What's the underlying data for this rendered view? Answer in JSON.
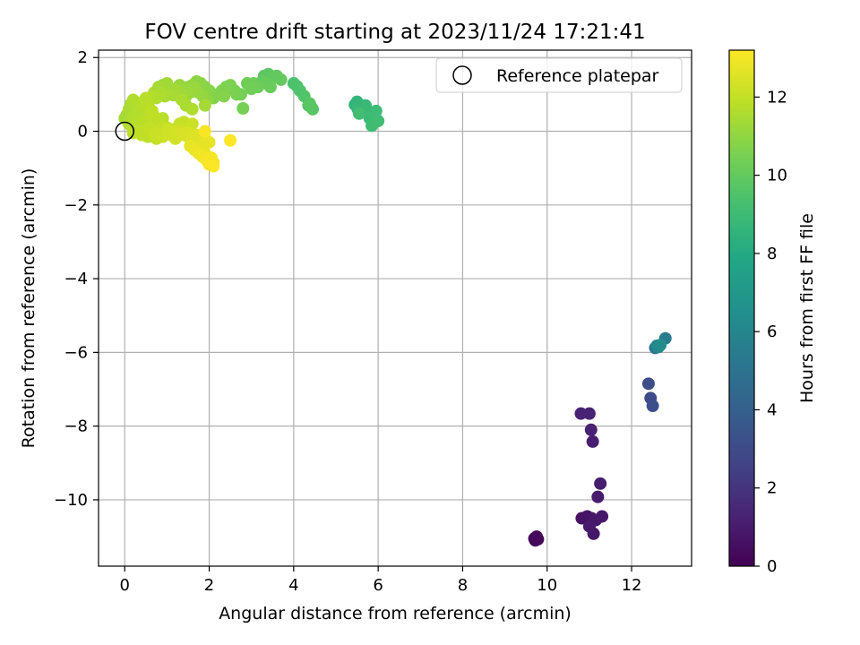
{
  "chart_data": {
    "type": "scatter",
    "title": "FOV centre drift starting at 2023/11/24 17:21:41",
    "xlabel": "Angular distance from reference (arcmin)",
    "ylabel": "Rotation from reference (arcmin)",
    "xlim": [
      -0.62,
      13.42
    ],
    "ylim": [
      -11.8,
      2.2
    ],
    "xticks": [
      0,
      2,
      4,
      6,
      8,
      10,
      12
    ],
    "yticks": [
      2,
      0,
      -2,
      -4,
      -6,
      -8,
      -10
    ],
    "grid": true,
    "legend": {
      "position": "top-right",
      "entries": [
        "Reference platepar"
      ]
    },
    "reference_point": {
      "x": 0,
      "y": 0,
      "label": "Reference platepar"
    },
    "colorbar": {
      "label": "Hours from first FF file",
      "range": [
        0,
        13.2
      ],
      "ticks": [
        0,
        2,
        4,
        6,
        8,
        10,
        12
      ],
      "colormap": "viridis"
    },
    "series": [
      {
        "x": [
          9.7,
          9.72,
          9.75,
          9.78,
          9.74,
          10.82,
          10.9,
          10.95,
          11.05,
          11.1,
          11.15,
          11.3,
          11.0,
          11.2,
          11.26,
          11.08,
          11.04,
          11.0,
          10.8,
          12.45,
          12.5,
          12.56,
          12.4,
          12.6,
          12.64,
          12.68,
          12.8
        ],
        "y": [
          -11.05,
          -11.1,
          -11.0,
          -11.07,
          -11.02,
          -10.5,
          -10.48,
          -10.45,
          -10.5,
          -10.92,
          -10.55,
          -10.45,
          -10.72,
          -9.92,
          -9.56,
          -8.42,
          -8.1,
          -7.66,
          -7.66,
          -7.24,
          -7.45,
          -5.88,
          -6.85,
          -5.82,
          -5.85,
          -5.8,
          -5.62
        ],
        "hours": [
          0.05,
          0.1,
          0.15,
          0.2,
          0.25,
          0.6,
          0.65,
          0.7,
          0.75,
          0.8,
          0.85,
          0.9,
          0.95,
          1.0,
          1.05,
          1.1,
          1.2,
          1.25,
          1.3,
          3.0,
          3.2,
          5.2,
          3.1,
          5.9,
          6.1,
          6.4,
          5.5
        ]
      },
      {
        "x": [
          5.45,
          5.5,
          5.52,
          5.6,
          5.7,
          5.75,
          5.8,
          5.9,
          5.95,
          5.85,
          6.0,
          5.55
        ],
        "y": [
          0.72,
          0.8,
          0.6,
          0.55,
          0.7,
          0.5,
          0.35,
          0.45,
          0.55,
          0.15,
          0.28,
          0.48
        ],
        "hours": [
          8.6,
          8.65,
          8.7,
          8.75,
          8.8,
          8.85,
          8.9,
          8.95,
          9.0,
          9.05,
          9.1,
          9.15
        ]
      },
      {
        "x": [
          4.0,
          4.08,
          4.15,
          4.25,
          4.35,
          4.42,
          4.45,
          4.38,
          3.3,
          3.4,
          3.5,
          3.6,
          3.7,
          3.25,
          3.35,
          3.45,
          3.05,
          3.15,
          2.9,
          3.0,
          2.75,
          2.8
        ],
        "y": [
          1.3,
          1.22,
          1.1,
          0.95,
          0.7,
          0.65,
          0.6,
          0.75,
          1.5,
          1.55,
          1.45,
          1.5,
          1.4,
          1.35,
          1.3,
          1.2,
          1.3,
          1.2,
          1.3,
          1.15,
          1.0,
          0.62
        ],
        "hours": [
          9.4,
          9.45,
          9.5,
          9.55,
          9.6,
          9.65,
          9.7,
          9.75,
          9.8,
          9.85,
          9.9,
          9.95,
          10.0,
          10.05,
          10.1,
          10.15,
          10.2,
          10.25,
          10.3,
          10.35,
          10.4,
          10.45
        ]
      },
      {
        "x": [
          2.5,
          2.4,
          2.3,
          2.2,
          2.1,
          2.6,
          2.65,
          2.35,
          2.0,
          1.9,
          1.8,
          1.7,
          1.6,
          1.5,
          1.4,
          1.3,
          1.2,
          1.1,
          1.0,
          0.9,
          0.8,
          0.7,
          1.95,
          1.85,
          1.75,
          1.65,
          1.55,
          1.45,
          1.35,
          1.25,
          1.15,
          1.05,
          0.95,
          0.85,
          0.75,
          0.65,
          1.45,
          1.35,
          1.6,
          1.9,
          1.7
        ],
        "y": [
          1.25,
          1.2,
          1.1,
          1.0,
          0.9,
          1.1,
          1.0,
          0.95,
          1.1,
          1.2,
          1.3,
          1.35,
          1.25,
          1.2,
          1.1,
          1.25,
          1.15,
          1.1,
          1.3,
          1.25,
          1.2,
          1.05,
          0.85,
          0.95,
          1.05,
          1.2,
          1.05,
          0.95,
          1.0,
          1.1,
          0.98,
          1.0,
          0.95,
          1.05,
          0.9,
          0.95,
          0.7,
          0.85,
          0.6,
          0.7,
          1.15
        ],
        "hours": [
          10.6,
          10.62,
          10.65,
          10.7,
          10.72,
          10.55,
          10.5,
          10.75,
          10.8,
          10.85,
          10.9,
          10.95,
          11.0,
          11.05,
          11.1,
          11.15,
          11.2,
          11.25,
          11.3,
          11.35,
          11.4,
          11.45,
          11.0,
          11.05,
          11.1,
          11.15,
          11.2,
          11.25,
          11.3,
          11.35,
          11.4,
          11.45,
          11.5,
          11.55,
          11.6,
          11.65,
          11.5,
          11.55,
          11.6,
          11.4,
          10.95
        ]
      },
      {
        "x": [
          0.0,
          0.05,
          0.1,
          0.15,
          0.2,
          0.25,
          0.3,
          0.35,
          0.4,
          0.45,
          0.5,
          0.55,
          0.6,
          0.65,
          0.1,
          0.15,
          0.2,
          0.25,
          0.3,
          0.35,
          0.4,
          0.45,
          0.5,
          0.55,
          0.6,
          0.65,
          0.7,
          0.75,
          0.2,
          0.3,
          0.4,
          0.5,
          0.6,
          0.7,
          0.8,
          0.9,
          1.0,
          0.15,
          0.25,
          0.35,
          0.45,
          0.55,
          0.65,
          0.75,
          0.85,
          0.95,
          0.3,
          0.4,
          0.5,
          0.6,
          0.7,
          0.8,
          0.9,
          1.0,
          1.1,
          1.2,
          1.3,
          1.4,
          1.5,
          1.6
        ],
        "y": [
          0.35,
          0.45,
          0.6,
          0.75,
          0.85,
          0.8,
          0.65,
          0.55,
          0.7,
          0.8,
          0.9,
          0.75,
          0.6,
          0.5,
          0.2,
          0.3,
          0.4,
          0.1,
          0.25,
          0.35,
          0.2,
          0.05,
          0.15,
          0.3,
          0.45,
          0.55,
          0.4,
          0.25,
          -0.05,
          0.0,
          -0.1,
          0.05,
          0.1,
          -0.05,
          0.0,
          0.1,
          -0.05,
          0.15,
          0.1,
          0.0,
          -0.1,
          -0.15,
          -0.05,
          -0.2,
          -0.15,
          -0.05,
          0.4,
          0.35,
          0.3,
          0.2,
          0.15,
          0.25,
          0.35,
          0.1,
          0.05,
          0.0,
          0.2,
          0.25,
          0.1,
          0.2
        ],
        "hours": [
          11.4,
          11.45,
          11.5,
          11.55,
          11.6,
          11.62,
          11.65,
          11.7,
          11.72,
          11.75,
          11.78,
          11.8,
          11.82,
          11.85,
          11.6,
          11.62,
          11.65,
          11.68,
          11.7,
          11.72,
          11.75,
          11.78,
          11.8,
          11.82,
          11.85,
          11.88,
          11.9,
          11.92,
          11.85,
          11.88,
          11.9,
          11.92,
          11.95,
          11.98,
          12.0,
          12.02,
          12.05,
          11.7,
          11.75,
          11.8,
          11.85,
          11.9,
          11.95,
          12.0,
          12.05,
          12.1,
          11.5,
          11.55,
          11.6,
          11.65,
          11.7,
          11.75,
          11.8,
          11.85,
          11.9,
          11.95,
          12.0,
          12.05,
          12.1,
          12.15
        ]
      },
      {
        "x": [
          0.7,
          0.8,
          0.9,
          1.0,
          1.1,
          1.2,
          1.3,
          1.4,
          1.5,
          1.6,
          1.7,
          1.75,
          1.8,
          1.85,
          1.9,
          1.95,
          2.0,
          2.05,
          2.1,
          1.0,
          1.2,
          1.4,
          1.6,
          1.8,
          1.5,
          1.7,
          1.9,
          2.0,
          1.3,
          1.1,
          1.55,
          1.65,
          1.75,
          1.85,
          1.95,
          2.0,
          2.1,
          2.05,
          1.9,
          2.5
        ],
        "y": [
          -0.05,
          -0.1,
          -0.15,
          -0.05,
          -0.1,
          -0.2,
          -0.1,
          -0.05,
          -0.15,
          -0.25,
          -0.3,
          -0.45,
          -0.55,
          -0.4,
          -0.6,
          -0.7,
          -0.75,
          -0.8,
          -0.85,
          0.05,
          0.0,
          -0.1,
          -0.2,
          -0.35,
          -0.05,
          -0.1,
          -0.2,
          -0.3,
          0.05,
          0.0,
          -0.4,
          -0.5,
          -0.6,
          -0.7,
          -0.8,
          -0.9,
          -0.95,
          -0.72,
          0.0,
          -0.25
        ],
        "hours": [
          12.1,
          12.12,
          12.15,
          12.2,
          12.25,
          12.3,
          12.35,
          12.4,
          12.45,
          12.5,
          12.55,
          12.6,
          12.65,
          12.7,
          12.75,
          12.8,
          12.85,
          12.9,
          12.95,
          12.2,
          12.3,
          12.4,
          12.5,
          12.6,
          12.45,
          12.55,
          12.65,
          12.75,
          12.25,
          12.15,
          12.7,
          12.8,
          12.9,
          13.0,
          13.05,
          13.1,
          13.15,
          13.0,
          13.1,
          13.15
        ]
      }
    ]
  }
}
